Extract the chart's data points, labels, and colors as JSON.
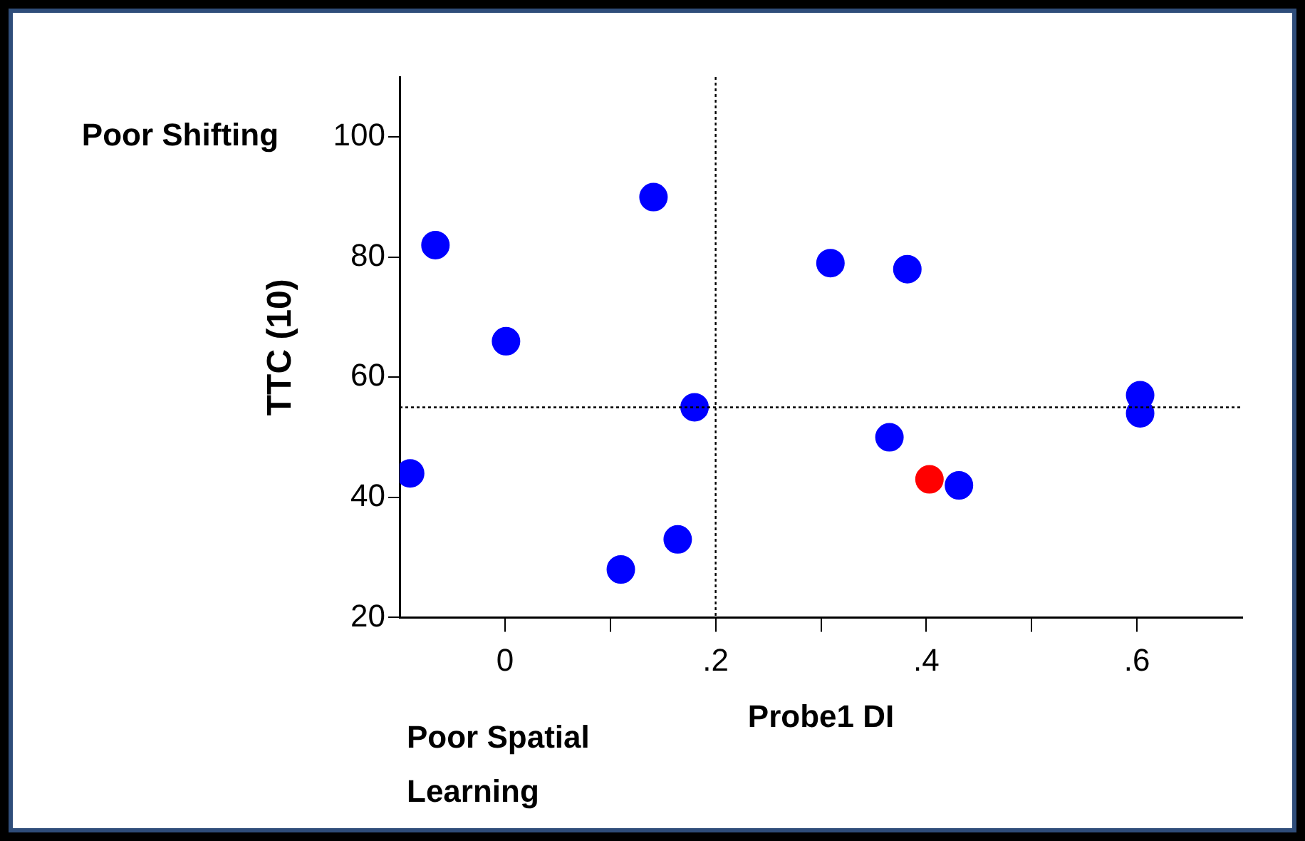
{
  "chart_data": {
    "type": "scatter",
    "xlabel": "Probe1 DI",
    "ylabel": "TTC (10)",
    "xlim": [
      -0.1,
      0.7
    ],
    "xticks": [
      {
        "value": 0,
        "label": "0"
      },
      {
        "value": 0.1,
        "label": null
      },
      {
        "value": 0.2,
        "label": ".2"
      },
      {
        "value": 0.3,
        "label": null
      },
      {
        "value": 0.4,
        "label": ".4"
      },
      {
        "value": 0.5,
        "label": null
      },
      {
        "value": 0.6,
        "label": ".6"
      }
    ],
    "ylim": [
      20,
      110
    ],
    "yticks": [
      20,
      40,
      60,
      80,
      100
    ],
    "series": [
      {
        "color": "#0000ff",
        "x": [
          -0.066,
          0.141,
          0.001,
          -0.09,
          0.18,
          0.11,
          0.164,
          0.309,
          0.382,
          0.365,
          0.431,
          0.603,
          0.603
        ],
        "values": [
          82,
          90,
          66,
          44,
          55,
          28,
          33,
          79,
          78,
          50,
          42,
          57,
          54
        ]
      },
      {
        "color": "#ff0000",
        "x": [
          0.403
        ],
        "values": [
          43
        ]
      }
    ],
    "ref_lines": [
      {
        "axis": "x",
        "value": 0.2,
        "line_style": "dotted"
      },
      {
        "axis": "y",
        "value": 55,
        "line_style": "dotted"
      }
    ],
    "annotations": [
      "Poor Shifting",
      "Poor Spatial Learning"
    ],
    "marker": "circle",
    "grid": false,
    "legend": false
  }
}
